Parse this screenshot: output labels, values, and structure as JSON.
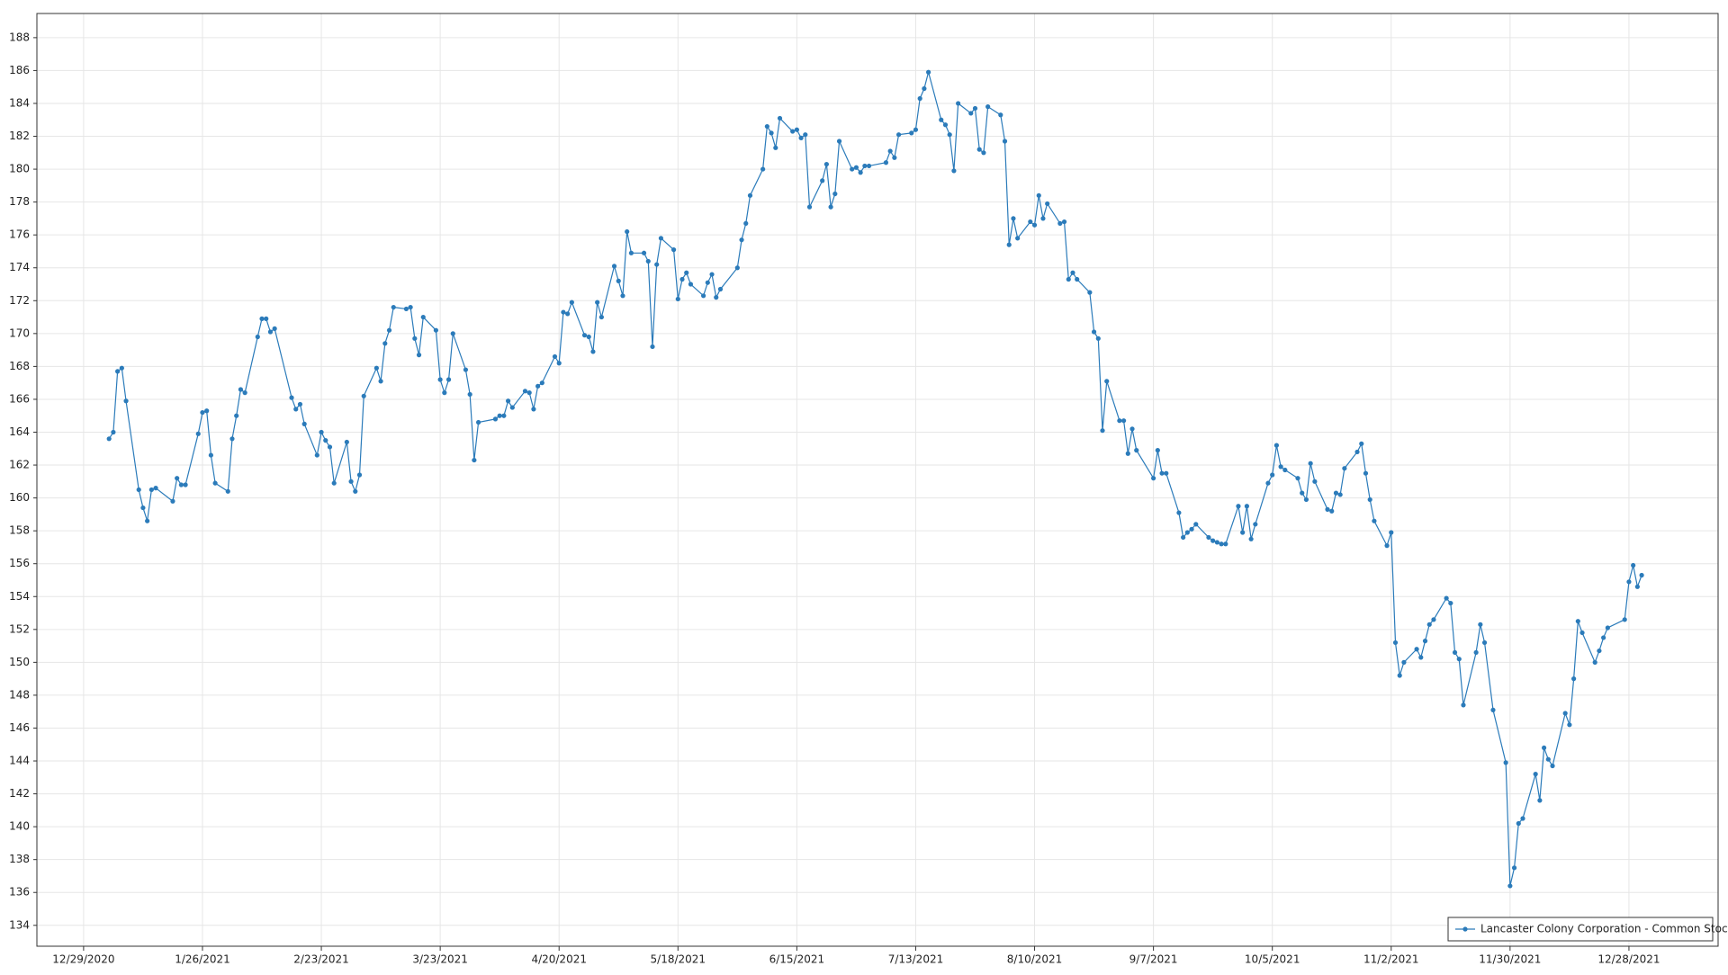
{
  "chart_data": {
    "type": "line",
    "x": [
      "2021-01-04",
      "2021-01-05",
      "2021-01-06",
      "2021-01-07",
      "2021-01-08",
      "2021-01-11",
      "2021-01-12",
      "2021-01-13",
      "2021-01-14",
      "2021-01-15",
      "2021-01-19",
      "2021-01-20",
      "2021-01-21",
      "2021-01-22",
      "2021-01-25",
      "2021-01-26",
      "2021-01-27",
      "2021-01-28",
      "2021-01-29",
      "2021-02-01",
      "2021-02-02",
      "2021-02-03",
      "2021-02-04",
      "2021-02-05",
      "2021-02-08",
      "2021-02-09",
      "2021-02-10",
      "2021-02-11",
      "2021-02-12",
      "2021-02-16",
      "2021-02-17",
      "2021-02-18",
      "2021-02-19",
      "2021-02-22",
      "2021-02-23",
      "2021-02-24",
      "2021-02-25",
      "2021-02-26",
      "2021-03-01",
      "2021-03-02",
      "2021-03-03",
      "2021-03-04",
      "2021-03-05",
      "2021-03-08",
      "2021-03-09",
      "2021-03-10",
      "2021-03-11",
      "2021-03-12",
      "2021-03-15",
      "2021-03-16",
      "2021-03-17",
      "2021-03-18",
      "2021-03-19",
      "2021-03-22",
      "2021-03-23",
      "2021-03-24",
      "2021-03-25",
      "2021-03-26",
      "2021-03-29",
      "2021-03-30",
      "2021-03-31",
      "2021-04-01",
      "2021-04-05",
      "2021-04-06",
      "2021-04-07",
      "2021-04-08",
      "2021-04-09",
      "2021-04-12",
      "2021-04-13",
      "2021-04-14",
      "2021-04-15",
      "2021-04-16",
      "2021-04-19",
      "2021-04-20",
      "2021-04-21",
      "2021-04-22",
      "2021-04-23",
      "2021-04-26",
      "2021-04-27",
      "2021-04-28",
      "2021-04-29",
      "2021-04-30",
      "2021-05-03",
      "2021-05-04",
      "2021-05-05",
      "2021-05-06",
      "2021-05-07",
      "2021-05-10",
      "2021-05-11",
      "2021-05-12",
      "2021-05-13",
      "2021-05-14",
      "2021-05-17",
      "2021-05-18",
      "2021-05-19",
      "2021-05-20",
      "2021-05-21",
      "2021-05-24",
      "2021-05-25",
      "2021-05-26",
      "2021-05-27",
      "2021-05-28",
      "2021-06-01",
      "2021-06-02",
      "2021-06-03",
      "2021-06-04",
      "2021-06-07",
      "2021-06-08",
      "2021-06-09",
      "2021-06-10",
      "2021-06-11",
      "2021-06-14",
      "2021-06-15",
      "2021-06-16",
      "2021-06-17",
      "2021-06-18",
      "2021-06-21",
      "2021-06-22",
      "2021-06-23",
      "2021-06-24",
      "2021-06-25",
      "2021-06-28",
      "2021-06-29",
      "2021-06-30",
      "2021-07-01",
      "2021-07-02",
      "2021-07-06",
      "2021-07-07",
      "2021-07-08",
      "2021-07-09",
      "2021-07-12",
      "2021-07-13",
      "2021-07-14",
      "2021-07-15",
      "2021-07-16",
      "2021-07-19",
      "2021-07-20",
      "2021-07-21",
      "2021-07-22",
      "2021-07-23",
      "2021-07-26",
      "2021-07-27",
      "2021-07-28",
      "2021-07-29",
      "2021-07-30",
      "2021-08-02",
      "2021-08-03",
      "2021-08-04",
      "2021-08-05",
      "2021-08-06",
      "2021-08-09",
      "2021-08-10",
      "2021-08-11",
      "2021-08-12",
      "2021-08-13",
      "2021-08-16",
      "2021-08-17",
      "2021-08-18",
      "2021-08-19",
      "2021-08-20",
      "2021-08-23",
      "2021-08-24",
      "2021-08-25",
      "2021-08-26",
      "2021-08-27",
      "2021-08-30",
      "2021-08-31",
      "2021-09-01",
      "2021-09-02",
      "2021-09-03",
      "2021-09-07",
      "2021-09-08",
      "2021-09-09",
      "2021-09-10",
      "2021-09-13",
      "2021-09-14",
      "2021-09-15",
      "2021-09-16",
      "2021-09-17",
      "2021-09-20",
      "2021-09-21",
      "2021-09-22",
      "2021-09-23",
      "2021-09-24",
      "2021-09-27",
      "2021-09-28",
      "2021-09-29",
      "2021-09-30",
      "2021-10-01",
      "2021-10-04",
      "2021-10-05",
      "2021-10-06",
      "2021-10-07",
      "2021-10-08",
      "2021-10-11",
      "2021-10-12",
      "2021-10-13",
      "2021-10-14",
      "2021-10-15",
      "2021-10-18",
      "2021-10-19",
      "2021-10-20",
      "2021-10-21",
      "2021-10-22",
      "2021-10-25",
      "2021-10-26",
      "2021-10-27",
      "2021-10-28",
      "2021-10-29",
      "2021-11-01",
      "2021-11-02",
      "2021-11-03",
      "2021-11-04",
      "2021-11-05",
      "2021-11-08",
      "2021-11-09",
      "2021-11-10",
      "2021-11-11",
      "2021-11-12",
      "2021-11-15",
      "2021-11-16",
      "2021-11-17",
      "2021-11-18",
      "2021-11-19",
      "2021-11-22",
      "2021-11-23",
      "2021-11-24",
      "2021-11-26",
      "2021-11-29",
      "2021-11-30",
      "2021-12-01",
      "2021-12-02",
      "2021-12-03",
      "2021-12-06",
      "2021-12-07",
      "2021-12-08",
      "2021-12-09",
      "2021-12-10",
      "2021-12-13",
      "2021-12-14",
      "2021-12-15",
      "2021-12-16",
      "2021-12-17",
      "2021-12-20",
      "2021-12-21",
      "2021-12-22",
      "2021-12-23",
      "2021-12-27",
      "2021-12-28",
      "2021-12-29",
      "2021-12-30",
      "2021-12-31"
    ],
    "series": [
      {
        "name": "Lancaster Colony Corporation - Common Stock",
        "color": "#2b7bba",
        "values": [
          163.6,
          164.0,
          167.7,
          167.9,
          165.9,
          160.5,
          159.4,
          158.6,
          160.5,
          160.6,
          159.8,
          161.2,
          160.8,
          160.8,
          163.9,
          165.2,
          165.3,
          162.6,
          160.9,
          160.4,
          163.6,
          165.0,
          166.6,
          166.4,
          169.8,
          170.9,
          170.9,
          170.1,
          170.3,
          166.1,
          165.4,
          165.7,
          164.5,
          162.6,
          164.0,
          163.5,
          163.1,
          160.9,
          163.4,
          161.0,
          160.4,
          161.4,
          166.2,
          167.9,
          167.1,
          169.4,
          170.2,
          171.6,
          171.5,
          171.6,
          169.7,
          168.7,
          171.0,
          170.2,
          167.2,
          166.4,
          167.2,
          170.0,
          167.8,
          166.3,
          162.3,
          164.6,
          164.8,
          165.0,
          165.0,
          165.9,
          165.5,
          166.5,
          166.4,
          165.4,
          166.8,
          167.0,
          168.6,
          168.2,
          171.3,
          171.2,
          171.9,
          169.9,
          169.8,
          168.9,
          171.9,
          171.0,
          174.1,
          173.2,
          172.3,
          176.2,
          174.9,
          174.9,
          174.4,
          169.2,
          174.2,
          175.8,
          175.1,
          172.1,
          173.3,
          173.7,
          173.0,
          172.3,
          173.1,
          173.6,
          172.2,
          172.7,
          174.0,
          175.7,
          176.7,
          178.4,
          180.0,
          182.6,
          182.2,
          181.3,
          183.1,
          182.3,
          182.4,
          181.9,
          182.1,
          177.7,
          179.3,
          180.3,
          177.7,
          178.5,
          181.7,
          180.0,
          180.1,
          179.8,
          180.2,
          180.2,
          180.4,
          181.1,
          180.7,
          182.1,
          182.2,
          182.4,
          184.3,
          184.9,
          185.9,
          183.0,
          182.7,
          182.1,
          179.9,
          184.0,
          183.4,
          183.7,
          181.2,
          181.0,
          183.8,
          183.3,
          181.7,
          175.4,
          177.0,
          175.8,
          176.8,
          176.6,
          178.4,
          177.0,
          177.9,
          176.7,
          176.8,
          173.3,
          173.7,
          173.3,
          172.5,
          170.1,
          169.7,
          164.1,
          167.1,
          164.7,
          164.7,
          162.7,
          164.2,
          162.9,
          161.2,
          162.9,
          161.5,
          161.5,
          159.1,
          157.6,
          157.9,
          158.1,
          158.4,
          157.6,
          157.4,
          157.3,
          157.2,
          157.2,
          159.5,
          157.9,
          159.5,
          157.5,
          158.4,
          160.9,
          161.4,
          163.2,
          161.9,
          161.7,
          161.2,
          160.3,
          159.9,
          162.1,
          161.0,
          159.3,
          159.2,
          160.3,
          160.2,
          161.8,
          162.8,
          163.3,
          161.5,
          159.9,
          158.6,
          157.1,
          157.9,
          151.2,
          149.2,
          150.0,
          150.8,
          150.3,
          151.3,
          152.3,
          152.6,
          153.9,
          153.6,
          150.6,
          150.2,
          147.4,
          150.6,
          152.3,
          151.2,
          147.1,
          143.9,
          136.4,
          137.5,
          140.2,
          140.5,
          143.2,
          141.6,
          144.8,
          144.1,
          143.7,
          146.9,
          146.2,
          149.0,
          152.5,
          151.8,
          150.0,
          150.7,
          151.5,
          152.1,
          152.6,
          154.9,
          155.9,
          154.6,
          155.3
        ]
      }
    ],
    "xlim": [
      "2020-12-18",
      "2022-01-18"
    ],
    "xticks": [
      {
        "value": "2020-12-29",
        "label": "12/29/2020"
      },
      {
        "value": "2021-01-26",
        "label": "1/26/2021"
      },
      {
        "value": "2021-02-23",
        "label": "2/23/2021"
      },
      {
        "value": "2021-03-23",
        "label": "3/23/2021"
      },
      {
        "value": "2021-04-20",
        "label": "4/20/2021"
      },
      {
        "value": "2021-05-18",
        "label": "5/18/2021"
      },
      {
        "value": "2021-06-15",
        "label": "6/15/2021"
      },
      {
        "value": "2021-07-13",
        "label": "7/13/2021"
      },
      {
        "value": "2021-08-10",
        "label": "8/10/2021"
      },
      {
        "value": "2021-09-07",
        "label": "9/7/2021"
      },
      {
        "value": "2021-10-05",
        "label": "10/5/2021"
      },
      {
        "value": "2021-11-02",
        "label": "11/2/2021"
      },
      {
        "value": "2021-11-30",
        "label": "11/30/2021"
      },
      {
        "value": "2021-12-28",
        "label": "12/28/2021"
      }
    ],
    "ylim": [
      132.73,
      189.47
    ],
    "yticks": [
      134,
      136,
      138,
      140,
      142,
      144,
      146,
      148,
      150,
      152,
      154,
      156,
      158,
      160,
      162,
      164,
      166,
      168,
      170,
      172,
      174,
      176,
      178,
      180,
      182,
      184,
      186,
      188
    ],
    "grid": true,
    "legend": "lower right"
  }
}
